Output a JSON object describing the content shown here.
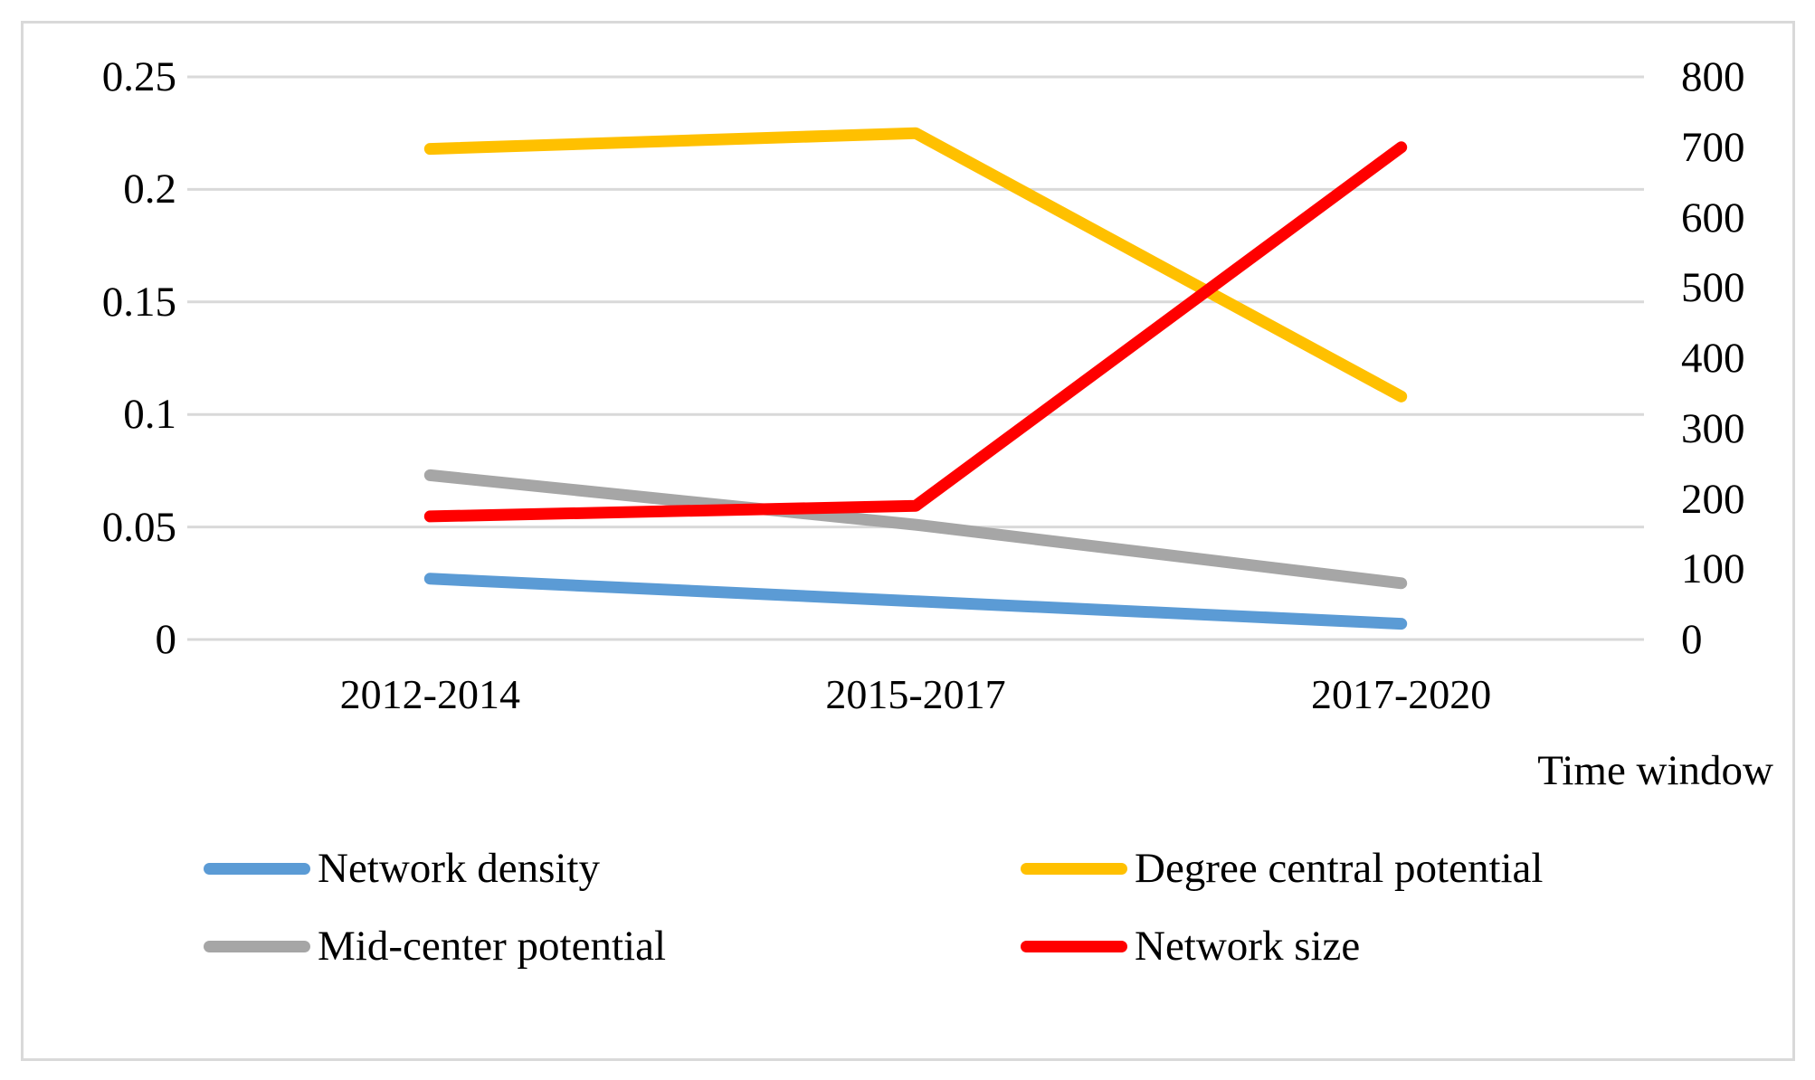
{
  "chart_data": {
    "type": "line",
    "title": "",
    "categories": [
      "2012-2014",
      "2015-2017",
      "2017-2020"
    ],
    "series": [
      {
        "name": "Network density",
        "axis": "left",
        "color": "#5B9BD5",
        "values": [
          0.027,
          0.017,
          0.007
        ]
      },
      {
        "name": "Degree central potential",
        "axis": "left",
        "color": "#FFC000",
        "values": [
          0.218,
          0.225,
          0.108
        ]
      },
      {
        "name": "Mid-center potential",
        "axis": "left",
        "color": "#A6A6A6",
        "values": [
          0.073,
          0.051,
          0.025
        ]
      },
      {
        "name": "Network size",
        "axis": "right",
        "color": "#FF0000",
        "values": [
          175,
          190,
          700
        ]
      }
    ],
    "xlabel": "Time window",
    "left_axis": {
      "range": [
        0,
        0.25
      ],
      "tick_values": [
        0,
        0.05,
        0.1,
        0.15,
        0.2,
        0.25
      ],
      "tick_labels": [
        "0",
        "0.05",
        "0.1",
        "0.15",
        "0.2",
        "0.25"
      ]
    },
    "right_axis": {
      "range": [
        0,
        800
      ],
      "tick_values": [
        0,
        100,
        200,
        300,
        400,
        500,
        600,
        700,
        800
      ],
      "tick_labels": [
        "0",
        "100",
        "200",
        "300",
        "400",
        "500",
        "600",
        "700",
        "800"
      ]
    },
    "grid": true,
    "gridline_color": "#D9D9D9",
    "frame_border_color": "#D9D9D9",
    "legend_position": "bottom",
    "legend_order": [
      "Network density",
      "Degree central potential",
      "Mid-center potential",
      "Network size"
    ]
  }
}
